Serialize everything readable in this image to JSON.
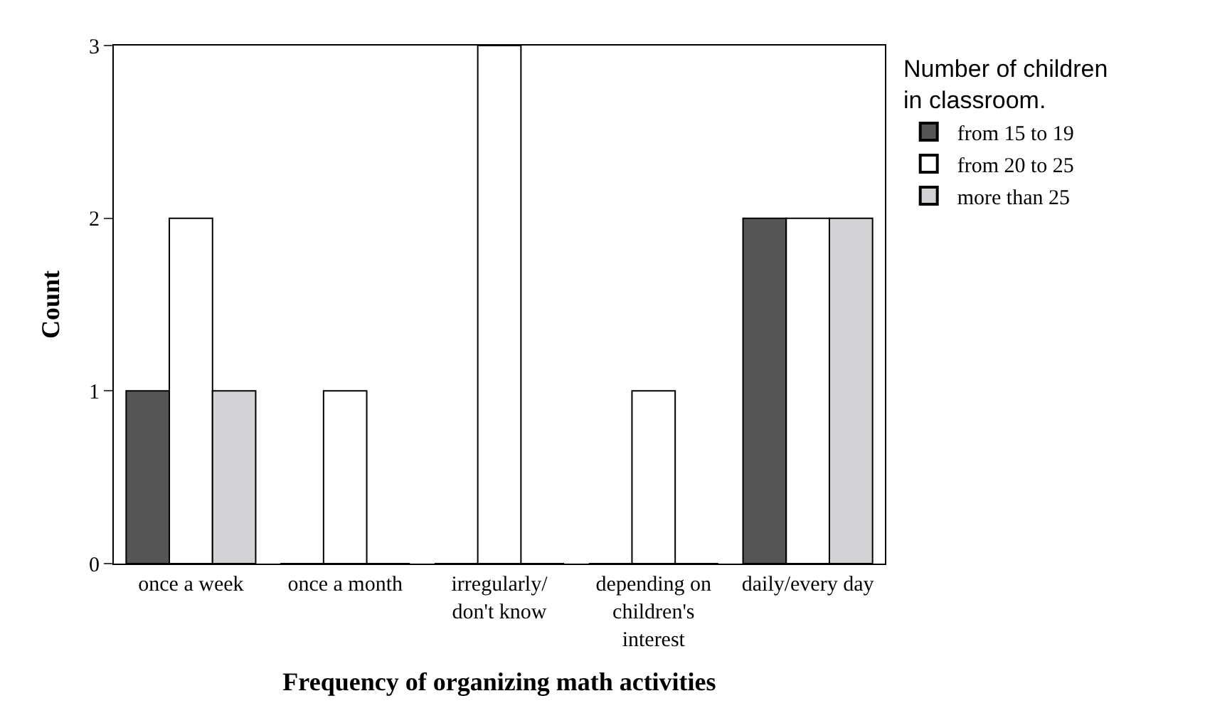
{
  "chart_data": {
    "type": "bar",
    "xlabel": "Frequency of organizing math activities",
    "ylabel": "Count",
    "legend_title": "Number of children\nin classroom.",
    "categories": [
      "once a week",
      "once a month",
      "irregularly/\ndon't know",
      "depending on\nchildren's\ninterest",
      "daily/every day"
    ],
    "series": [
      {
        "name": "from 15 to 19",
        "color": "#555555",
        "values": [
          1,
          0,
          0,
          0,
          2
        ]
      },
      {
        "name": "from 20 to 25",
        "color": "#ffffff",
        "values": [
          2,
          1,
          3,
          1,
          2
        ]
      },
      {
        "name": "more than 25",
        "color": "#d3d3d5",
        "values": [
          1,
          0,
          0,
          0,
          2
        ]
      }
    ],
    "ylim": [
      0,
      3
    ],
    "yticks": [
      0,
      1,
      2,
      3
    ],
    "legend": "top right"
  }
}
